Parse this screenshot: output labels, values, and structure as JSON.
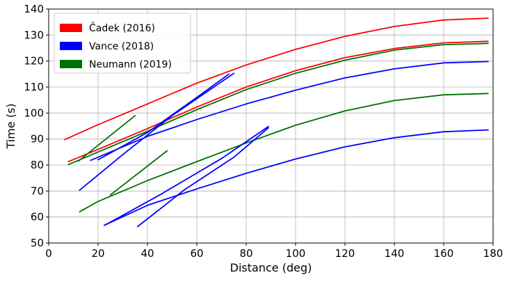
{
  "chart_data": {
    "type": "line",
    "title": "",
    "xlabel": "Distance (deg)",
    "ylabel": "Time (s)",
    "xlim": [
      0,
      180
    ],
    "ylim": [
      50,
      140
    ],
    "xticks": [
      0,
      20,
      40,
      60,
      80,
      100,
      120,
      140,
      160,
      180
    ],
    "yticks": [
      50,
      60,
      70,
      80,
      90,
      100,
      110,
      120,
      130,
      140
    ],
    "grid": true,
    "legend_position": "top-left",
    "legend": [
      {
        "name": "Čadek (2016)",
        "color": "#ff0000"
      },
      {
        "name": "Vance (2018)",
        "color": "#0000ff"
      },
      {
        "name": "Neumann (2019)",
        "color": "#007000"
      }
    ],
    "series": [
      {
        "group": "Čadek (2016)",
        "color": "#ff0000",
        "points": [
          [
            6.5,
            89.8
          ],
          [
            20,
            95.5
          ],
          [
            40,
            103.5
          ],
          [
            60,
            111.5
          ],
          [
            80,
            118.5
          ],
          [
            100,
            124.5
          ],
          [
            120,
            129.5
          ],
          [
            140,
            133.3
          ],
          [
            160,
            135.8
          ],
          [
            178,
            136.5
          ]
        ]
      },
      {
        "group": "Čadek (2016)",
        "color": "#ff0000",
        "points": [
          [
            8,
            81.3
          ],
          [
            20,
            86
          ],
          [
            40,
            94
          ],
          [
            60,
            102.3
          ],
          [
            80,
            110
          ],
          [
            100,
            116.3
          ],
          [
            120,
            121.3
          ],
          [
            140,
            124.8
          ],
          [
            160,
            127
          ],
          [
            178,
            127.6
          ]
        ]
      },
      {
        "group": "Neumann (2019)",
        "color": "#007000",
        "points": [
          [
            8,
            80.2
          ],
          [
            20,
            85
          ],
          [
            40,
            93
          ],
          [
            60,
            101.3
          ],
          [
            80,
            109
          ],
          [
            100,
            115.3
          ],
          [
            120,
            120.3
          ],
          [
            140,
            124.2
          ],
          [
            160,
            126.3
          ],
          [
            178,
            126.8
          ]
        ]
      },
      {
        "group": "Neumann (2019)",
        "color": "#007000",
        "points": [
          [
            12,
            81.5
          ],
          [
            35,
            99
          ]
        ]
      },
      {
        "group": "Neumann (2019)",
        "color": "#007000",
        "points": [
          [
            25,
            68.5
          ],
          [
            48,
            85.5
          ]
        ]
      },
      {
        "group": "Neumann (2019)",
        "color": "#007000",
        "points": [
          [
            12.5,
            62
          ],
          [
            20,
            66
          ],
          [
            40,
            74
          ],
          [
            60,
            81.3
          ],
          [
            80,
            88.5
          ],
          [
            100,
            95.3
          ],
          [
            120,
            100.8
          ],
          [
            140,
            104.8
          ],
          [
            160,
            107
          ],
          [
            178,
            107.5
          ]
        ]
      },
      {
        "group": "Vance (2018)",
        "color": "#0000ff",
        "points": [
          [
            17,
            81.8
          ],
          [
            40,
            91
          ],
          [
            60,
            97.5
          ],
          [
            80,
            103.5
          ],
          [
            100,
            108.8
          ],
          [
            120,
            113.5
          ],
          [
            140,
            117
          ],
          [
            160,
            119.3
          ],
          [
            178,
            119.8
          ]
        ]
      },
      {
        "group": "Vance (2018)",
        "color": "#0000ff",
        "points": [
          [
            12.5,
            70.3
          ],
          [
            30,
            84
          ],
          [
            50,
            99
          ],
          [
            75,
            115.3
          ]
        ]
      },
      {
        "group": "Vance (2018)",
        "color": "#0000ff",
        "points": [
          [
            20,
            82
          ],
          [
            40,
            92.5
          ],
          [
            60,
            106
          ],
          [
            73,
            115
          ]
        ]
      },
      {
        "group": "Vance (2018)",
        "color": "#0000ff",
        "points": [
          [
            22.5,
            56.8
          ],
          [
            40,
            64.5
          ],
          [
            60,
            70.8
          ],
          [
            80,
            76.8
          ],
          [
            100,
            82.3
          ],
          [
            120,
            87
          ],
          [
            140,
            90.5
          ],
          [
            160,
            92.8
          ],
          [
            178,
            93.5
          ]
        ]
      },
      {
        "group": "Vance (2018)",
        "color": "#0000ff",
        "points": [
          [
            23,
            57
          ],
          [
            45,
            68.5
          ],
          [
            70,
            82.5
          ],
          [
            89,
            94.8
          ]
        ]
      },
      {
        "group": "Vance (2018)",
        "color": "#0000ff",
        "points": [
          [
            36,
            56.3
          ],
          [
            55,
            70.5
          ],
          [
            75,
            83
          ],
          [
            89,
            94.3
          ]
        ]
      }
    ]
  }
}
